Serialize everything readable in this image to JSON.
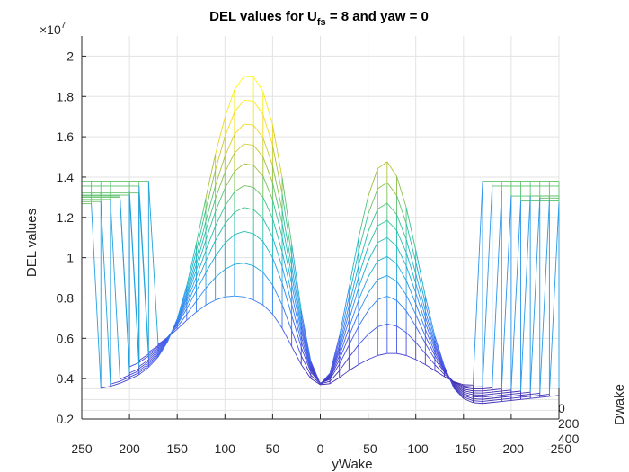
{
  "chart_data": {
    "type": "surface-mesh",
    "title_main": "DEL values for U",
    "title_sub": "fs",
    "title_rest": " = 8 and yaw = 0",
    "xlabel": "yWake",
    "ylabel": "DEL values",
    "zlabel": "Dwake",
    "exponent_base": "×10",
    "exponent_power": "7",
    "x_ticks": [
      "250",
      "200",
      "150",
      "100",
      "50",
      "0",
      "-50",
      "-100",
      "-150",
      "-200",
      "-250"
    ],
    "y_ticks": [
      "0.2",
      "0.4",
      "0.6",
      "0.8",
      "1",
      "1.2",
      "1.4",
      "1.6",
      "1.8",
      "2"
    ],
    "depth_ticks": [
      "0",
      "200",
      "400"
    ],
    "xlim": [
      250,
      -250
    ],
    "ylim": [
      0.2,
      2.1
    ],
    "grid": true,
    "colormap": [
      "#3e26a8",
      "#4755e8",
      "#2f8ef3",
      "#18b5c9",
      "#3dc489",
      "#a7bf3b",
      "#f5d925",
      "#f9fb0e"
    ],
    "yWake": [
      250,
      240,
      230,
      220,
      210,
      200,
      190,
      180,
      170,
      160,
      150,
      140,
      130,
      120,
      110,
      100,
      90,
      80,
      70,
      60,
      50,
      40,
      30,
      20,
      10,
      0,
      -10,
      -20,
      -30,
      -40,
      -50,
      -60,
      -70,
      -80,
      -90,
      -100,
      -110,
      -120,
      -130,
      -140,
      -150,
      -160,
      -170,
      -180,
      -190,
      -200,
      -210,
      -220,
      -230,
      -240,
      -250
    ],
    "base_profile": [
      0.435,
      0.44,
      0.445,
      0.455,
      0.47,
      0.49,
      0.51,
      0.54,
      0.57,
      0.605,
      0.645,
      0.69,
      0.73,
      0.765,
      0.79,
      0.805,
      0.81,
      0.805,
      0.79,
      0.765,
      0.72,
      0.65,
      0.56,
      0.47,
      0.4,
      0.37,
      0.375,
      0.405,
      0.44,
      0.47,
      0.495,
      0.515,
      0.525,
      0.525,
      0.515,
      0.495,
      0.47,
      0.44,
      0.41,
      0.385,
      0.37,
      0.368,
      0.37,
      0.375,
      0.38,
      0.385,
      0.39,
      0.395,
      0.4,
      0.405,
      0.41
    ],
    "bump_profile": [
      0,
      0,
      0,
      0,
      0,
      0,
      0.002,
      0.008,
      0.025,
      0.06,
      0.12,
      0.22,
      0.36,
      0.52,
      0.68,
      0.82,
      0.93,
      0.99,
      1.0,
      0.96,
      0.86,
      0.7,
      0.5,
      0.3,
      0.15,
      0.08,
      0.12,
      0.25,
      0.42,
      0.6,
      0.75,
      0.85,
      0.87,
      0.81,
      0.69,
      0.53,
      0.36,
      0.22,
      0.12,
      0.05,
      0.02,
      0.005,
      0,
      0,
      0,
      0,
      0,
      0,
      0,
      0,
      0
    ],
    "depth_offsets": [
      0,
      0.0175,
      0.035,
      0.0525,
      0.07,
      0.0875,
      0.105,
      0.1225,
      0.14,
      0.1575
    ],
    "depth_amplitudes": [
      0.0,
      0.18,
      0.35,
      0.48,
      0.6,
      0.72,
      0.83,
      0.94,
      1.07,
      1.2
    ],
    "plateau_value": 1.38,
    "plateau_left_cutoffs": [
      180,
      190,
      200,
      210,
      220,
      230,
      240,
      250,
      250,
      250
    ],
    "plateau_right_cutoffs": [
      -160,
      -170,
      -180,
      -190,
      -200,
      -210,
      -220,
      -230,
      -240,
      -250
    ]
  }
}
